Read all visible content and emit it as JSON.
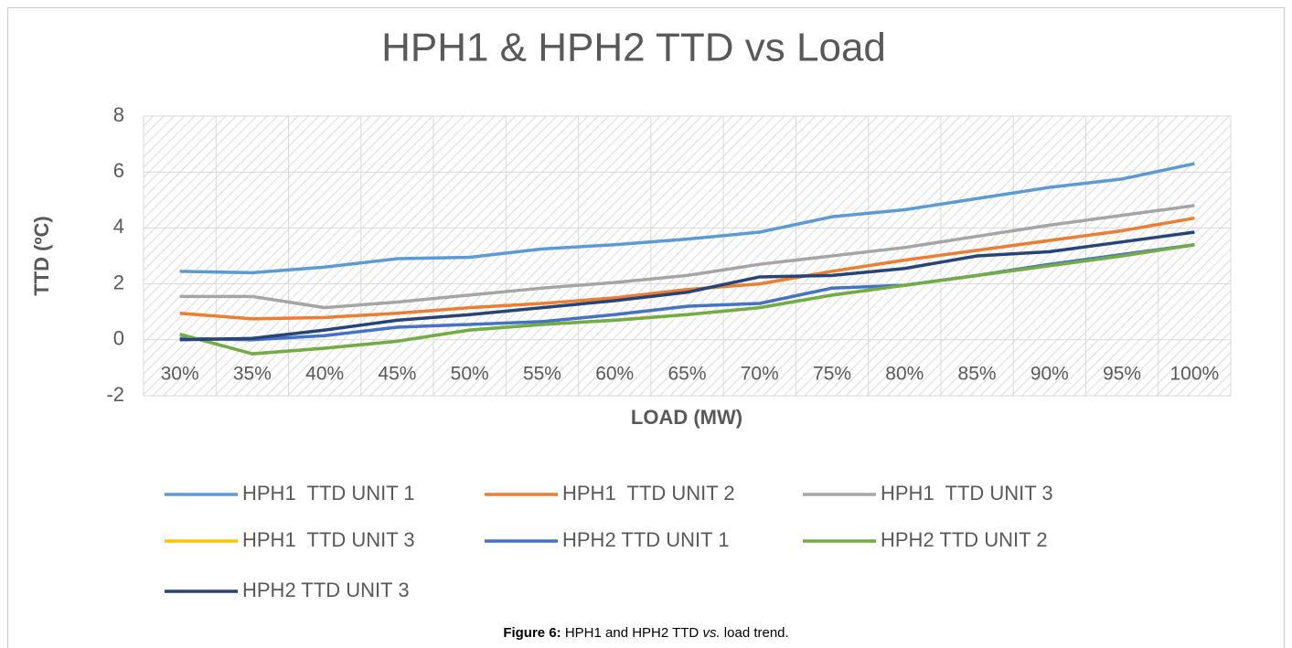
{
  "chart_data": {
    "type": "line",
    "title": "HPH1 & HPH2 TTD vs Load",
    "x_label": "LOAD (MW)",
    "y_label": "TTD (ºC)",
    "categories": [
      "30%",
      "35%",
      "40%",
      "45%",
      "50%",
      "55%",
      "60%",
      "65%",
      "70%",
      "75%",
      "80%",
      "85%",
      "90%",
      "95%",
      "100%"
    ],
    "ylim": [
      -2,
      8
    ],
    "yticks": [
      -2,
      0,
      2,
      4,
      6,
      8
    ],
    "grid": true,
    "legend": "bottom",
    "series": [
      {
        "name": "HPH1  TTD UNIT 1",
        "color": "#5b9bd5",
        "values": [
          2.45,
          2.4,
          2.6,
          2.9,
          2.95,
          3.25,
          3.4,
          3.6,
          3.85,
          4.4,
          4.65,
          5.05,
          5.45,
          5.75,
          6.3
        ]
      },
      {
        "name": "HPH1  TTD UNIT 2",
        "color": "#ed7d31",
        "values": [
          0.95,
          0.75,
          0.8,
          0.95,
          1.15,
          1.3,
          1.5,
          1.8,
          2.0,
          2.45,
          2.85,
          3.2,
          3.55,
          3.9,
          4.35
        ]
      },
      {
        "name": "HPH1  TTD UNIT 3",
        "color": "#a5a5a5",
        "values": [
          1.55,
          1.55,
          1.15,
          1.35,
          1.6,
          1.85,
          2.05,
          2.3,
          2.7,
          3.0,
          3.3,
          3.7,
          4.1,
          4.45,
          4.8
        ]
      },
      {
        "name": "HPH1  TTD UNIT 3",
        "color": "#ffc000",
        "values": [
          0.2,
          -0.5,
          -0.3,
          -0.05,
          0.35,
          0.55,
          0.7,
          0.9,
          1.15,
          1.6,
          1.95,
          2.3,
          2.65,
          3.0,
          3.4
        ]
      },
      {
        "name": "HPH2 TTD UNIT 1",
        "color": "#4472c4",
        "values": [
          0.05,
          0.0,
          0.15,
          0.45,
          0.55,
          0.65,
          0.9,
          1.2,
          1.3,
          1.85,
          1.95,
          2.3,
          2.7,
          3.05,
          3.4
        ]
      },
      {
        "name": "HPH2 TTD UNIT 2",
        "color": "#70ad47",
        "values": [
          0.2,
          -0.5,
          -0.3,
          -0.05,
          0.35,
          0.55,
          0.7,
          0.9,
          1.15,
          1.6,
          1.95,
          2.3,
          2.65,
          3.0,
          3.4
        ]
      },
      {
        "name": "HPH2 TTD UNIT 3",
        "color": "#264478",
        "values": [
          0.0,
          0.05,
          0.35,
          0.7,
          0.9,
          1.15,
          1.4,
          1.7,
          2.25,
          2.3,
          2.55,
          3.0,
          3.15,
          3.5,
          3.85
        ]
      }
    ]
  },
  "caption": {
    "label": "Figure 6:",
    "text": "HPH1 and HPH2 TTD",
    "emphasis": "vs.",
    "rest": "load trend."
  }
}
